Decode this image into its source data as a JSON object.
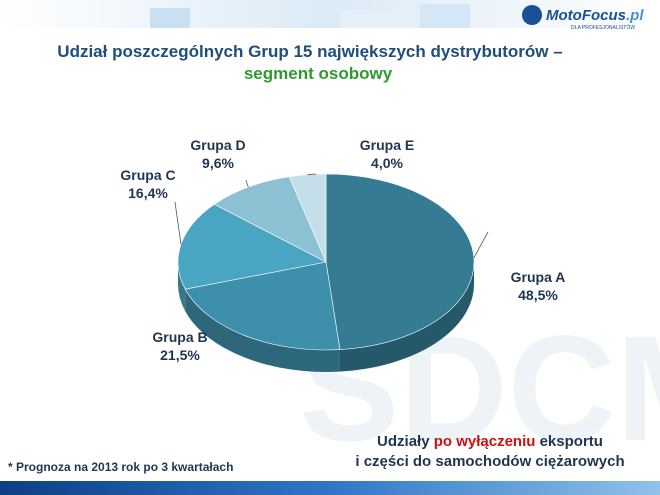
{
  "header": {
    "logo": "MotoFocus",
    "logo_suffix": ".pl",
    "logo_tagline": "DLA PROFESJONALISTÓW"
  },
  "chart_data": {
    "type": "pie",
    "title": "Udział poszczególnych Grup 15 największych dystrybutorów –",
    "subtitle": "segment osobowy",
    "categories": [
      "Grupa A",
      "Grupa B",
      "Grupa C",
      "Grupa D",
      "Grupa E"
    ],
    "values": [
      48.5,
      21.5,
      16.4,
      9.6,
      4.0
    ],
    "value_labels": [
      "48,5%",
      "21,5%",
      "16,4%",
      "9,6%",
      "4,0%"
    ],
    "colors": [
      "#347b93",
      "#3d8fac",
      "#4aa5c3",
      "#8bc1d3",
      "#c4dfe9"
    ]
  },
  "footnote": "* Prognoza na 2013 rok po 3 kwartałach",
  "annotation": {
    "line1": [
      "Udziały",
      "po wyłączeniu",
      "eksportu"
    ],
    "line2": "i części do samochodów ciężarowych"
  },
  "watermark": "SDCM"
}
